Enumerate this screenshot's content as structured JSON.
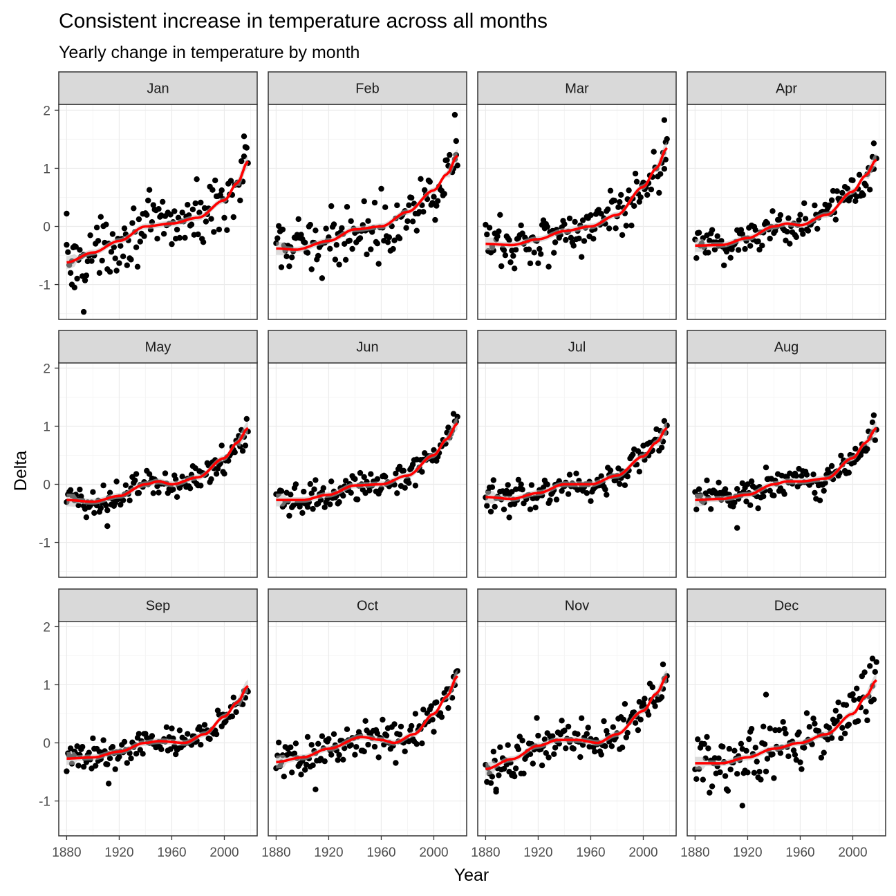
{
  "chart_data": {
    "type": "scatter",
    "title": "Consistent increase in temperature across all months",
    "subtitle": "Yearly change in temperature by month",
    "xlabel": "Year",
    "ylabel": "Delta",
    "xlim": [
      1874,
      2025
    ],
    "ylim": [
      -1.6,
      2.1
    ],
    "x_ticks": [
      1880,
      1920,
      1960,
      2000
    ],
    "y_ticks": [
      -1,
      0,
      1,
      2
    ],
    "grid": true,
    "colors": {
      "point": "#000000",
      "smooth": "#ff0000",
      "ribbon": "#bfbfbf",
      "strip_fill": "#d9d9d9",
      "panel_border": "#333333",
      "grid_major": "#ebebeb",
      "grid_minor": "#f5f5f5"
    },
    "panels": [
      {
        "name": "Jan",
        "spread": 0.24,
        "trend": [
          [
            1880,
            -0.62
          ],
          [
            1900,
            -0.45
          ],
          [
            1920,
            -0.25
          ],
          [
            1940,
            0.0
          ],
          [
            1960,
            0.05
          ],
          [
            1980,
            0.15
          ],
          [
            2000,
            0.45
          ],
          [
            2010,
            0.75
          ],
          [
            2018,
            1.12
          ]
        ]
      },
      {
        "name": "Feb",
        "spread": 0.24,
        "trend": [
          [
            1880,
            -0.38
          ],
          [
            1895,
            -0.4
          ],
          [
            1920,
            -0.25
          ],
          [
            1940,
            -0.05
          ],
          [
            1960,
            0.0
          ],
          [
            1980,
            0.25
          ],
          [
            2000,
            0.62
          ],
          [
            2010,
            0.9
          ],
          [
            2018,
            1.22
          ]
        ]
      },
      {
        "name": "Mar",
        "spread": 0.22,
        "trend": [
          [
            1880,
            -0.3
          ],
          [
            1900,
            -0.32
          ],
          [
            1920,
            -0.22
          ],
          [
            1940,
            -0.08
          ],
          [
            1960,
            0.0
          ],
          [
            1980,
            0.2
          ],
          [
            2000,
            0.68
          ],
          [
            2010,
            1.0
          ],
          [
            2018,
            1.35
          ]
        ]
      },
      {
        "name": "Apr",
        "spread": 0.17,
        "trend": [
          [
            1880,
            -0.33
          ],
          [
            1900,
            -0.32
          ],
          [
            1920,
            -0.2
          ],
          [
            1940,
            0.0
          ],
          [
            1950,
            0.05
          ],
          [
            1960,
            0.02
          ],
          [
            1980,
            0.2
          ],
          [
            2000,
            0.6
          ],
          [
            2010,
            0.88
          ],
          [
            2018,
            1.15
          ]
        ]
      },
      {
        "name": "May",
        "spread": 0.13,
        "trend": [
          [
            1880,
            -0.27
          ],
          [
            1900,
            -0.3
          ],
          [
            1920,
            -0.2
          ],
          [
            1940,
            0.0
          ],
          [
            1950,
            0.05
          ],
          [
            1960,
            0.0
          ],
          [
            1980,
            0.12
          ],
          [
            2000,
            0.45
          ],
          [
            2010,
            0.72
          ],
          [
            2018,
            0.97
          ]
        ]
      },
      {
        "name": "Jun",
        "spread": 0.12,
        "trend": [
          [
            1880,
            -0.27
          ],
          [
            1900,
            -0.27
          ],
          [
            1920,
            -0.18
          ],
          [
            1940,
            -0.02
          ],
          [
            1960,
            0.0
          ],
          [
            1980,
            0.15
          ],
          [
            2000,
            0.5
          ],
          [
            2010,
            0.78
          ],
          [
            2018,
            1.05
          ]
        ]
      },
      {
        "name": "Jul",
        "spread": 0.12,
        "trend": [
          [
            1880,
            -0.22
          ],
          [
            1900,
            -0.25
          ],
          [
            1920,
            -0.15
          ],
          [
            1940,
            0.0
          ],
          [
            1960,
            0.0
          ],
          [
            1980,
            0.15
          ],
          [
            2000,
            0.48
          ],
          [
            2010,
            0.72
          ],
          [
            2018,
            0.97
          ]
        ]
      },
      {
        "name": "Aug",
        "spread": 0.13,
        "trend": [
          [
            1880,
            -0.27
          ],
          [
            1900,
            -0.25
          ],
          [
            1920,
            -0.18
          ],
          [
            1940,
            0.0
          ],
          [
            1950,
            0.05
          ],
          [
            1960,
            0.05
          ],
          [
            1980,
            0.1
          ],
          [
            2000,
            0.45
          ],
          [
            2010,
            0.72
          ],
          [
            2018,
            0.97
          ]
        ]
      },
      {
        "name": "Sep",
        "spread": 0.12,
        "trend": [
          [
            1880,
            -0.27
          ],
          [
            1900,
            -0.25
          ],
          [
            1920,
            -0.15
          ],
          [
            1940,
            0.0
          ],
          [
            1950,
            0.03
          ],
          [
            1970,
            0.0
          ],
          [
            1985,
            0.15
          ],
          [
            2000,
            0.45
          ],
          [
            2010,
            0.7
          ],
          [
            2018,
            0.98
          ]
        ]
      },
      {
        "name": "Oct",
        "spread": 0.15,
        "trend": [
          [
            1880,
            -0.33
          ],
          [
            1900,
            -0.25
          ],
          [
            1920,
            -0.1
          ],
          [
            1945,
            0.1
          ],
          [
            1960,
            0.05
          ],
          [
            1970,
            0.0
          ],
          [
            1985,
            0.15
          ],
          [
            2000,
            0.5
          ],
          [
            2010,
            0.8
          ],
          [
            2018,
            1.15
          ]
        ]
      },
      {
        "name": "Nov",
        "spread": 0.18,
        "trend": [
          [
            1880,
            -0.45
          ],
          [
            1900,
            -0.28
          ],
          [
            1920,
            -0.05
          ],
          [
            1935,
            0.05
          ],
          [
            1950,
            0.05
          ],
          [
            1965,
            0.0
          ],
          [
            1980,
            0.15
          ],
          [
            2000,
            0.55
          ],
          [
            2010,
            0.85
          ],
          [
            2018,
            1.15
          ]
        ]
      },
      {
        "name": "Dec",
        "spread": 0.22,
        "trend": [
          [
            1880,
            -0.35
          ],
          [
            1900,
            -0.35
          ],
          [
            1920,
            -0.25
          ],
          [
            1940,
            -0.1
          ],
          [
            1960,
            0.0
          ],
          [
            1980,
            0.15
          ],
          [
            2000,
            0.5
          ],
          [
            2010,
            0.8
          ],
          [
            2018,
            1.08
          ]
        ]
      }
    ],
    "extreme_points": [
      {
        "panel": "Jan",
        "x": 1880,
        "y": 0.22
      },
      {
        "panel": "Jan",
        "x": 1884,
        "y": -1.0
      },
      {
        "panel": "Jan",
        "x": 1886,
        "y": -1.05
      },
      {
        "panel": "Jan",
        "x": 1893,
        "y": -1.47
      },
      {
        "panel": "Jan",
        "x": 2015,
        "y": 1.55
      },
      {
        "panel": "Feb",
        "x": 2016,
        "y": 1.92
      },
      {
        "panel": "Feb",
        "x": 2017,
        "y": 1.47
      },
      {
        "panel": "Mar",
        "x": 2016,
        "y": 1.83
      },
      {
        "panel": "Mar",
        "x": 2017,
        "y": 1.45
      },
      {
        "panel": "Apr",
        "x": 2016,
        "y": 1.43
      },
      {
        "panel": "May",
        "x": 1911,
        "y": -0.72
      },
      {
        "panel": "Jul",
        "x": 1898,
        "y": -0.57
      },
      {
        "panel": "Aug",
        "x": 1912,
        "y": -0.75
      },
      {
        "panel": "Sep",
        "x": 1912,
        "y": -0.7
      },
      {
        "panel": "Oct",
        "x": 1910,
        "y": -0.8
      },
      {
        "panel": "Nov",
        "x": 1888,
        "y": -0.8
      },
      {
        "panel": "Nov",
        "x": 2015,
        "y": 1.35
      },
      {
        "panel": "Dec",
        "x": 1916,
        "y": -1.08
      },
      {
        "panel": "Dec",
        "x": 1934,
        "y": 0.83
      },
      {
        "panel": "Dec",
        "x": 2015,
        "y": 1.45
      }
    ]
  }
}
